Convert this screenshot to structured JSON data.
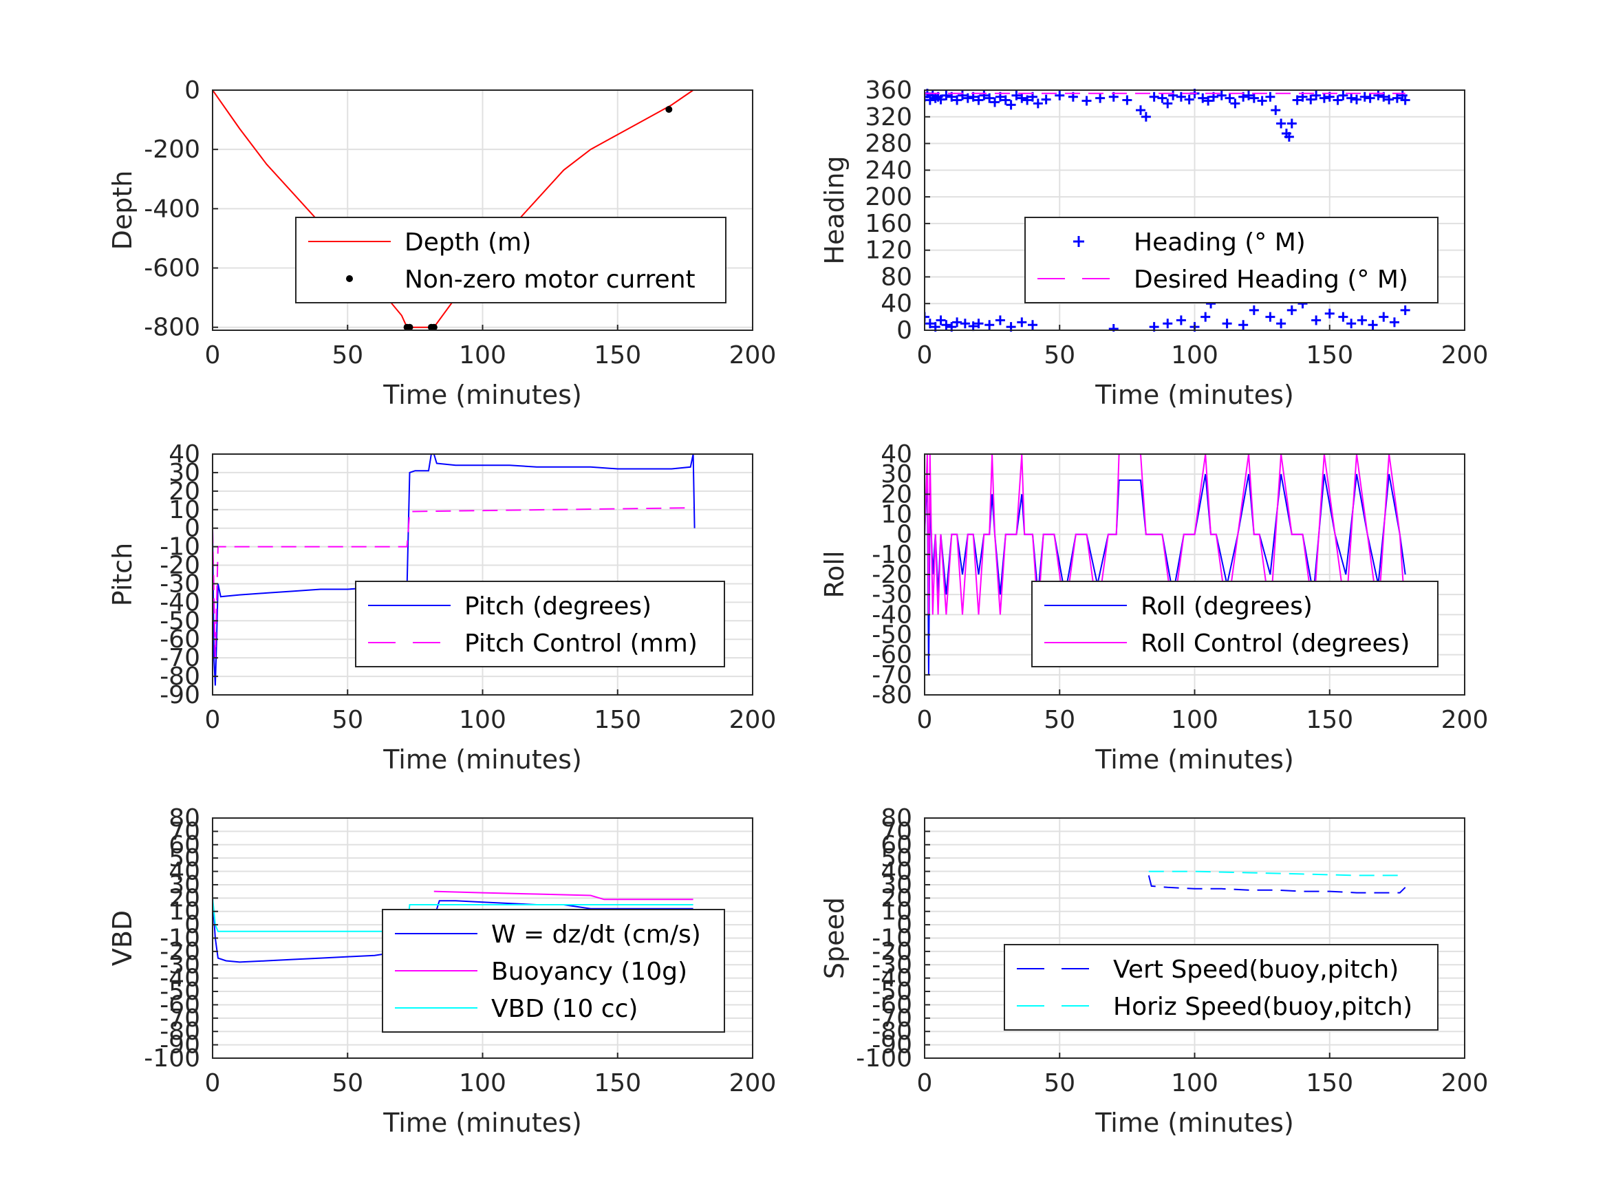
{
  "chart_data": [
    {
      "type": "line",
      "xlabel": "Time (minutes)",
      "ylabel": "Depth",
      "xlim": [
        0,
        200
      ],
      "ylim": [
        -810,
        0
      ],
      "xticks": [
        0,
        50,
        100,
        150,
        200
      ],
      "yticks": [
        -800,
        -600,
        -400,
        -200,
        0
      ],
      "grid": true,
      "legend": "center-right",
      "series": [
        {
          "name": "Depth (m)",
          "color": "#ff0000",
          "style": "solid",
          "x": [
            0,
            10,
            20,
            30,
            40,
            50,
            60,
            70,
            72,
            82,
            90,
            100,
            110,
            120,
            130,
            140,
            150,
            160,
            170,
            178
          ],
          "y": [
            0,
            -130,
            -250,
            -350,
            -450,
            -550,
            -650,
            -760,
            -800,
            -800,
            -700,
            -580,
            -470,
            -370,
            -270,
            -200,
            -150,
            -100,
            -50,
            0
          ]
        },
        {
          "name": "Non-zero motor current",
          "color": "#000000",
          "style": "dots",
          "x": [
            72,
            73,
            81,
            82,
            169
          ],
          "y": [
            -800,
            -800,
            -800,
            -800,
            -65
          ]
        }
      ]
    },
    {
      "type": "scatter",
      "xlabel": "Time (minutes)",
      "ylabel": "Heading",
      "xlim": [
        0,
        200
      ],
      "ylim": [
        0,
        360
      ],
      "xticks": [
        0,
        50,
        100,
        150,
        200
      ],
      "yticks": [
        0,
        40,
        80,
        120,
        160,
        200,
        240,
        280,
        320,
        360
      ],
      "grid": true,
      "legend": "center-right",
      "series": [
        {
          "name": "Heading (° M)",
          "color": "#0000ff",
          "style": "plus",
          "x": [
            0,
            1,
            2,
            3,
            4,
            5,
            6,
            8,
            10,
            12,
            14,
            16,
            18,
            20,
            22,
            24,
            26,
            28,
            30,
            32,
            34,
            36,
            38,
            40,
            42,
            45,
            50,
            55,
            60,
            65,
            70,
            75,
            80,
            82,
            85,
            88,
            90,
            92,
            95,
            98,
            100,
            103,
            105,
            107,
            110,
            113,
            115,
            118,
            120,
            122,
            125,
            128,
            130,
            132,
            134,
            135,
            136,
            138,
            140,
            143,
            145,
            148,
            150,
            153,
            155,
            158,
            160,
            163,
            165,
            168,
            170,
            172,
            175,
            177,
            178,
            0,
            2,
            4,
            6,
            8,
            10,
            12,
            15,
            18,
            20,
            24,
            28,
            32,
            36,
            40,
            70,
            85,
            90,
            95,
            100,
            104,
            106,
            108,
            112,
            118,
            122,
            124,
            128,
            132,
            136,
            140,
            145,
            150,
            155,
            158,
            162,
            166,
            170,
            174,
            178
          ],
          "y": [
            350,
            355,
            345,
            352,
            348,
            350,
            346,
            352,
            350,
            345,
            352,
            348,
            350,
            345,
            352,
            348,
            342,
            350,
            345,
            338,
            352,
            348,
            345,
            350,
            340,
            346,
            352,
            350,
            344,
            348,
            350,
            345,
            330,
            320,
            350,
            348,
            340,
            352,
            350,
            346,
            355,
            348,
            344,
            350,
            352,
            348,
            340,
            350,
            352,
            348,
            344,
            350,
            330,
            310,
            295,
            290,
            310,
            345,
            350,
            346,
            352,
            348,
            350,
            345,
            352,
            348,
            346,
            350,
            348,
            352,
            350,
            346,
            348,
            352,
            345,
            20,
            10,
            5,
            15,
            8,
            5,
            12,
            10,
            6,
            10,
            8,
            15,
            5,
            12,
            8,
            2,
            5,
            10,
            15,
            5,
            20,
            40,
            50,
            10,
            8,
            30,
            50,
            20,
            10,
            30,
            40,
            15,
            25,
            20,
            10,
            15,
            8,
            20,
            12,
            30
          ]
        },
        {
          "name": "Desired Heading (° M)",
          "color": "#ff00ff",
          "style": "dashed",
          "x": [
            0,
            178
          ],
          "y": [
            355,
            355
          ]
        }
      ]
    },
    {
      "type": "line",
      "xlabel": "Time (minutes)",
      "ylabel": "Pitch",
      "xlim": [
        0,
        200
      ],
      "ylim": [
        -90,
        40
      ],
      "xticks": [
        0,
        50,
        100,
        150,
        200
      ],
      "yticks": [
        -90,
        -80,
        -70,
        -60,
        -50,
        -40,
        -30,
        -20,
        -10,
        0,
        10,
        20,
        30,
        40
      ],
      "grid": true,
      "legend": "center-right",
      "series": [
        {
          "name": "Pitch (degrees)",
          "color": "#0000ff",
          "style": "solid",
          "x": [
            0,
            0.5,
            1,
            1.5,
            2,
            3,
            10,
            20,
            30,
            40,
            50,
            60,
            70,
            72,
            73,
            75,
            80,
            81,
            82,
            83,
            90,
            100,
            110,
            120,
            130,
            140,
            150,
            160,
            170,
            177,
            178,
            178.5
          ],
          "y": [
            0,
            -70,
            -85,
            -60,
            -30,
            -37,
            -36,
            -35,
            -34,
            -33,
            -33,
            -32,
            -32,
            -32,
            30,
            31,
            31,
            40,
            40,
            35,
            34,
            34,
            34,
            33,
            33,
            33,
            32,
            32,
            32,
            33,
            40,
            0
          ]
        },
        {
          "name": "Pitch Control (mm)",
          "color": "#ff00ff",
          "style": "dashed",
          "x": [
            0,
            1,
            2,
            3,
            72,
            73,
            178
          ],
          "y": [
            0,
            -70,
            -10,
            -10,
            -10,
            9,
            11
          ]
        }
      ]
    },
    {
      "type": "line",
      "xlabel": "Time (minutes)",
      "ylabel": "Roll",
      "xlim": [
        0,
        200
      ],
      "ylim": [
        -80,
        40
      ],
      "xticks": [
        0,
        50,
        100,
        150,
        200
      ],
      "yticks": [
        -80,
        -70,
        -60,
        -50,
        -40,
        -30,
        -20,
        -10,
        0,
        10,
        20,
        30,
        40
      ],
      "grid": true,
      "legend": "center-right",
      "series": [
        {
          "name": "Roll (degrees)",
          "color": "#0000ff",
          "style": "solid",
          "x": [
            0,
            1,
            1.5,
            2,
            3,
            4,
            5,
            6,
            8,
            10,
            12,
            14,
            16,
            18,
            20,
            22,
            24,
            25,
            26,
            28,
            30,
            34,
            36,
            37,
            38,
            40,
            42,
            44,
            48,
            52,
            56,
            60,
            64,
            68,
            71,
            72,
            80,
            82,
            88,
            92,
            96,
            100,
            104,
            106,
            108,
            112,
            116,
            120,
            122,
            124,
            128,
            132,
            136,
            140,
            144,
            148,
            152,
            156,
            160,
            164,
            168,
            172,
            176,
            178
          ],
          "y": [
            0,
            30,
            -70,
            20,
            -20,
            0,
            -30,
            0,
            -30,
            0,
            0,
            -20,
            0,
            0,
            -20,
            0,
            0,
            20,
            0,
            -30,
            0,
            0,
            20,
            0,
            0,
            0,
            -30,
            0,
            0,
            -30,
            0,
            0,
            -25,
            0,
            0,
            27,
            27,
            0,
            0,
            -30,
            0,
            0,
            30,
            0,
            0,
            -25,
            0,
            30,
            0,
            0,
            -20,
            30,
            0,
            0,
            -30,
            30,
            0,
            -20,
            30,
            0,
            -25,
            30,
            0,
            -20
          ]
        },
        {
          "name": "Roll Control (degrees)",
          "color": "#ff00ff",
          "style": "solid",
          "x": [
            0,
            1,
            1.5,
            2,
            3,
            4,
            5,
            6,
            8,
            10,
            12,
            14,
            16,
            18,
            20,
            22,
            24,
            25,
            26,
            28,
            30,
            34,
            36,
            37,
            38,
            40,
            42,
            44,
            48,
            52,
            56,
            60,
            64,
            68,
            71,
            72,
            80,
            82,
            88,
            92,
            96,
            100,
            104,
            106,
            108,
            112,
            116,
            120,
            122,
            124,
            128,
            132,
            136,
            140,
            144,
            148,
            152,
            156,
            160,
            164,
            168,
            172,
            176,
            178
          ],
          "y": [
            0,
            40,
            -40,
            40,
            -40,
            0,
            -40,
            0,
            -40,
            0,
            0,
            -40,
            0,
            0,
            -40,
            0,
            0,
            40,
            0,
            -40,
            0,
            0,
            40,
            0,
            0,
            0,
            -40,
            0,
            0,
            -40,
            0,
            0,
            -40,
            0,
            0,
            40,
            40,
            0,
            0,
            -40,
            0,
            0,
            40,
            0,
            0,
            -40,
            0,
            40,
            0,
            0,
            -40,
            40,
            0,
            0,
            -40,
            40,
            0,
            -40,
            40,
            0,
            -40,
            40,
            0,
            -40
          ]
        }
      ]
    },
    {
      "type": "line",
      "xlabel": "Time (minutes)",
      "ylabel": "VBD",
      "xlim": [
        0,
        200
      ],
      "ylim": [
        -100,
        80
      ],
      "xticks": [
        0,
        50,
        100,
        150,
        200
      ],
      "yticks": [
        -100,
        -90,
        -80,
        -70,
        -60,
        -50,
        -40,
        -30,
        -20,
        -10,
        0,
        10,
        20,
        30,
        40,
        50,
        60,
        70,
        80
      ],
      "grid": true,
      "legend": "center-right",
      "series": [
        {
          "name": "W = dz/dt (cm/s)",
          "color": "#0000ff",
          "style": "solid",
          "x": [
            0,
            1,
            2,
            5,
            10,
            20,
            30,
            40,
            50,
            60,
            70,
            72,
            73,
            75,
            78,
            80,
            82,
            84,
            90,
            100,
            110,
            120,
            130,
            140,
            150,
            160,
            170,
            178
          ],
          "y": [
            20,
            -10,
            -25,
            -27,
            -28,
            -27,
            -26,
            -25,
            -24,
            -23,
            -20,
            -20,
            -10,
            5,
            2,
            2,
            5,
            18,
            18,
            17,
            16,
            15,
            15,
            12,
            12,
            12,
            12,
            12
          ]
        },
        {
          "name": "Buoyancy (10g)",
          "color": "#ff00ff",
          "style": "solid",
          "x": [
            82,
            100,
            120,
            140,
            145,
            160,
            178
          ],
          "y": [
            25,
            24,
            23,
            22,
            19,
            19,
            19
          ]
        },
        {
          "name": "VBD (10 cc)",
          "color": "#00ffff",
          "style": "solid",
          "x": [
            0,
            1,
            2,
            72,
            73,
            178
          ],
          "y": [
            20,
            0,
            -5,
            -5,
            15,
            15
          ]
        }
      ]
    },
    {
      "type": "line",
      "xlabel": "Time (minutes)",
      "ylabel": "Speed",
      "xlim": [
        0,
        200
      ],
      "ylim": [
        -100,
        80
      ],
      "xticks": [
        0,
        50,
        100,
        150,
        200
      ],
      "yticks": [
        -100,
        -90,
        -80,
        -70,
        -60,
        -50,
        -40,
        -30,
        -20,
        -10,
        0,
        10,
        20,
        30,
        40,
        50,
        60,
        70,
        80
      ],
      "grid": true,
      "legend": "center-right",
      "series": [
        {
          "name": "Vert Speed(buoy,pitch)",
          "color": "#0000ff",
          "style": "dashed",
          "x": [
            83,
            84,
            90,
            100,
            110,
            120,
            130,
            140,
            150,
            160,
            170,
            176,
            178
          ],
          "y": [
            37,
            29,
            28,
            27,
            27,
            26,
            26,
            25,
            25,
            24,
            24,
            24,
            28
          ]
        },
        {
          "name": "Horiz Speed(buoy,pitch)",
          "color": "#00ffff",
          "style": "dashed",
          "x": [
            83,
            100,
            120,
            140,
            160,
            178
          ],
          "y": [
            40,
            40,
            39,
            38,
            37,
            37
          ]
        }
      ]
    }
  ]
}
